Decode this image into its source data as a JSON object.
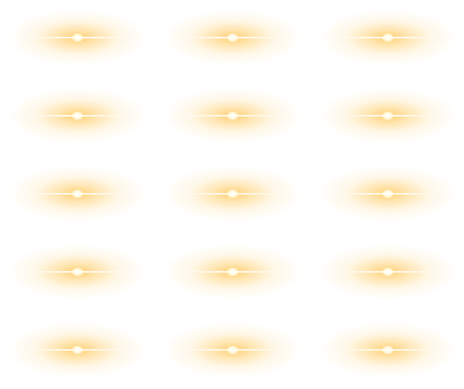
{
  "sheet": {
    "background_color": "#ffffff",
    "glow_color": "#ffc85a",
    "core_color": "#ffffff",
    "flare_rows": 5,
    "flare_columns": 3
  }
}
